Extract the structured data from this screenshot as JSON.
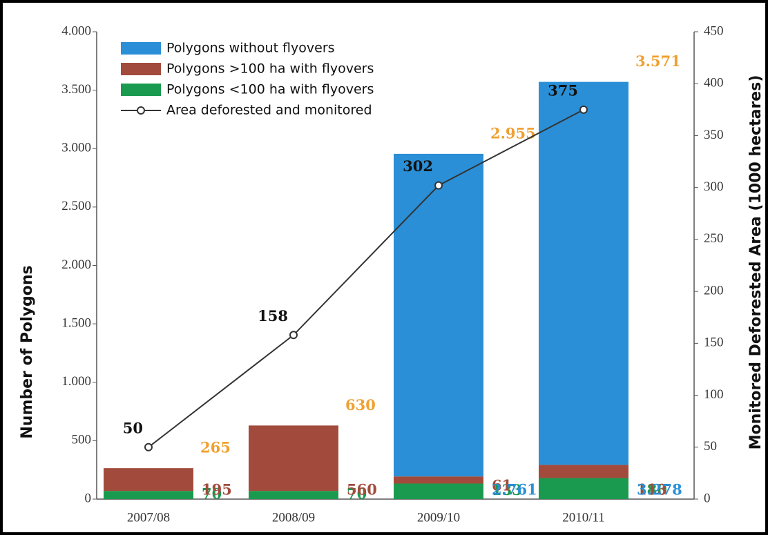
{
  "chart_data": {
    "type": "bar",
    "categories": [
      "2007/08",
      "2008/09",
      "2009/10",
      "2010/11"
    ],
    "ylabel": "Number of Polygons",
    "y2label": "Monitored Deforested Area (1000 hectares)",
    "ylim": [
      0,
      4000
    ],
    "yticks": [
      0,
      500,
      {
        "value": 1000,
        "label": "1.000"
      },
      {
        "value": 1500,
        "label": "1.500"
      },
      {
        "value": 2000,
        "label": "2.000"
      },
      {
        "value": 2500,
        "label": "2.500"
      },
      {
        "value": 3000,
        "label": "3.000"
      },
      {
        "value": 3500,
        "label": "3.500"
      },
      {
        "value": 4000,
        "label": "4.000"
      }
    ],
    "y2lim": [
      0,
      450
    ],
    "y2ticks": [
      0,
      50,
      100,
      150,
      200,
      250,
      300,
      350,
      400,
      450
    ],
    "legend": "upper left",
    "series": [
      {
        "name": "Polygons without flyovers",
        "color": "#2a8fd6",
        "values": [
          null,
          null,
          2761,
          3278
        ],
        "value_labels": [
          null,
          null,
          "2.761",
          "3.278"
        ]
      },
      {
        "name": "Polygons >100 ha with flyovers",
        "color": "#a24b3c",
        "values": [
          195,
          560,
          61,
          113
        ]
      },
      {
        "name": "Polygons <100 ha with flyovers",
        "color": "#1a9a4e",
        "values": [
          70,
          70,
          133,
          180
        ]
      },
      {
        "name": "Area deforested and monitored",
        "type": "line",
        "axis": "y2",
        "color": "#333333",
        "values": [
          50,
          158,
          302,
          375
        ]
      }
    ],
    "totals": [
      265,
      630,
      2955,
      3571
    ],
    "totals_labels": [
      "265",
      "630",
      "2.955",
      "3.571"
    ],
    "totals_color": "#f0a030"
  }
}
